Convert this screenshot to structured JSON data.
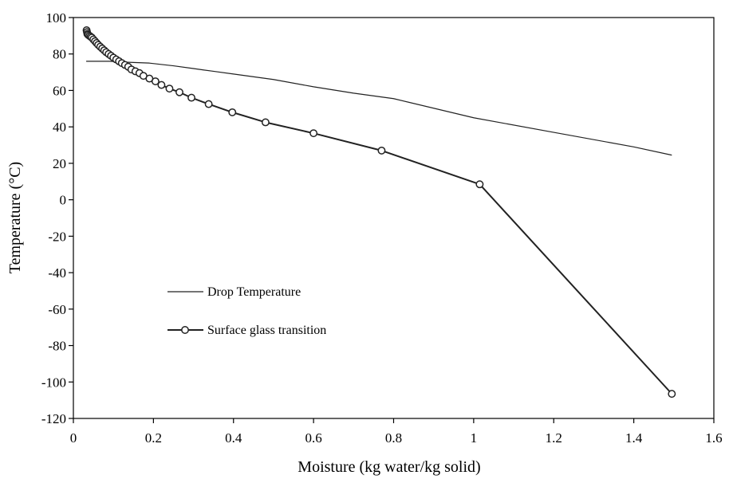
{
  "chart_data": {
    "type": "line",
    "xlabel": "Moisture (kg water/kg solid)",
    "ylabel": "Temperature (°C)",
    "xlim": [
      0,
      1.6
    ],
    "ylim": [
      -120,
      100
    ],
    "x_ticks": [
      "0",
      "0.2",
      "0.4",
      "0.6",
      "0.8",
      "1",
      "1.2",
      "1.4",
      "1.6"
    ],
    "y_ticks": [
      "100",
      "80",
      "60",
      "40",
      "20",
      "0",
      "-20",
      "-40",
      "-60",
      "-80",
      "-100",
      "-120"
    ],
    "grid": false,
    "legend_position": "center-left",
    "series": [
      {
        "name": "Drop Temperature",
        "color": "#222222",
        "marker": "none",
        "points": [
          [
            0.032,
            76.0
          ],
          [
            0.09,
            76.0
          ],
          [
            0.13,
            75.5
          ],
          [
            0.19,
            75.0
          ],
          [
            0.21,
            74.5
          ],
          [
            0.25,
            73.5
          ],
          [
            0.3,
            72.0
          ],
          [
            0.35,
            70.5
          ],
          [
            0.4,
            69.0
          ],
          [
            0.5,
            66.0
          ],
          [
            0.6,
            62.0
          ],
          [
            0.7,
            58.5
          ],
          [
            0.8,
            55.5
          ],
          [
            1.0,
            45.0
          ],
          [
            1.2,
            37.0
          ],
          [
            1.4,
            29.0
          ],
          [
            1.495,
            24.5
          ]
        ]
      },
      {
        "name": "Surface glass transition",
        "color": "#222222",
        "marker": "circle",
        "points": [
          [
            0.033,
            93.0
          ],
          [
            0.034,
            92.0
          ],
          [
            0.035,
            91.0
          ],
          [
            0.037,
            90.5
          ],
          [
            0.04,
            90.0
          ],
          [
            0.043,
            89.5
          ],
          [
            0.046,
            89.0
          ],
          [
            0.05,
            88.0
          ],
          [
            0.054,
            87.0
          ],
          [
            0.058,
            86.0
          ],
          [
            0.062,
            85.0
          ],
          [
            0.067,
            84.0
          ],
          [
            0.072,
            83.0
          ],
          [
            0.077,
            82.0
          ],
          [
            0.082,
            81.0
          ],
          [
            0.088,
            80.0
          ],
          [
            0.094,
            79.0
          ],
          [
            0.1,
            78.0
          ],
          [
            0.107,
            77.0
          ],
          [
            0.114,
            76.0
          ],
          [
            0.121,
            75.0
          ],
          [
            0.129,
            74.0
          ],
          [
            0.137,
            73.0
          ],
          [
            0.145,
            71.5
          ],
          [
            0.155,
            70.5
          ],
          [
            0.165,
            69.5
          ],
          [
            0.175,
            68.0
          ],
          [
            0.19,
            66.5
          ],
          [
            0.205,
            65.0
          ],
          [
            0.22,
            63.0
          ],
          [
            0.24,
            61.0
          ],
          [
            0.265,
            59.0
          ],
          [
            0.295,
            56.0
          ],
          [
            0.338,
            52.5
          ],
          [
            0.397,
            48.0
          ],
          [
            0.48,
            42.5
          ],
          [
            0.6,
            36.5
          ],
          [
            0.77,
            27.0
          ],
          [
            1.015,
            8.5
          ],
          [
            1.495,
            -106.5
          ]
        ]
      }
    ]
  }
}
